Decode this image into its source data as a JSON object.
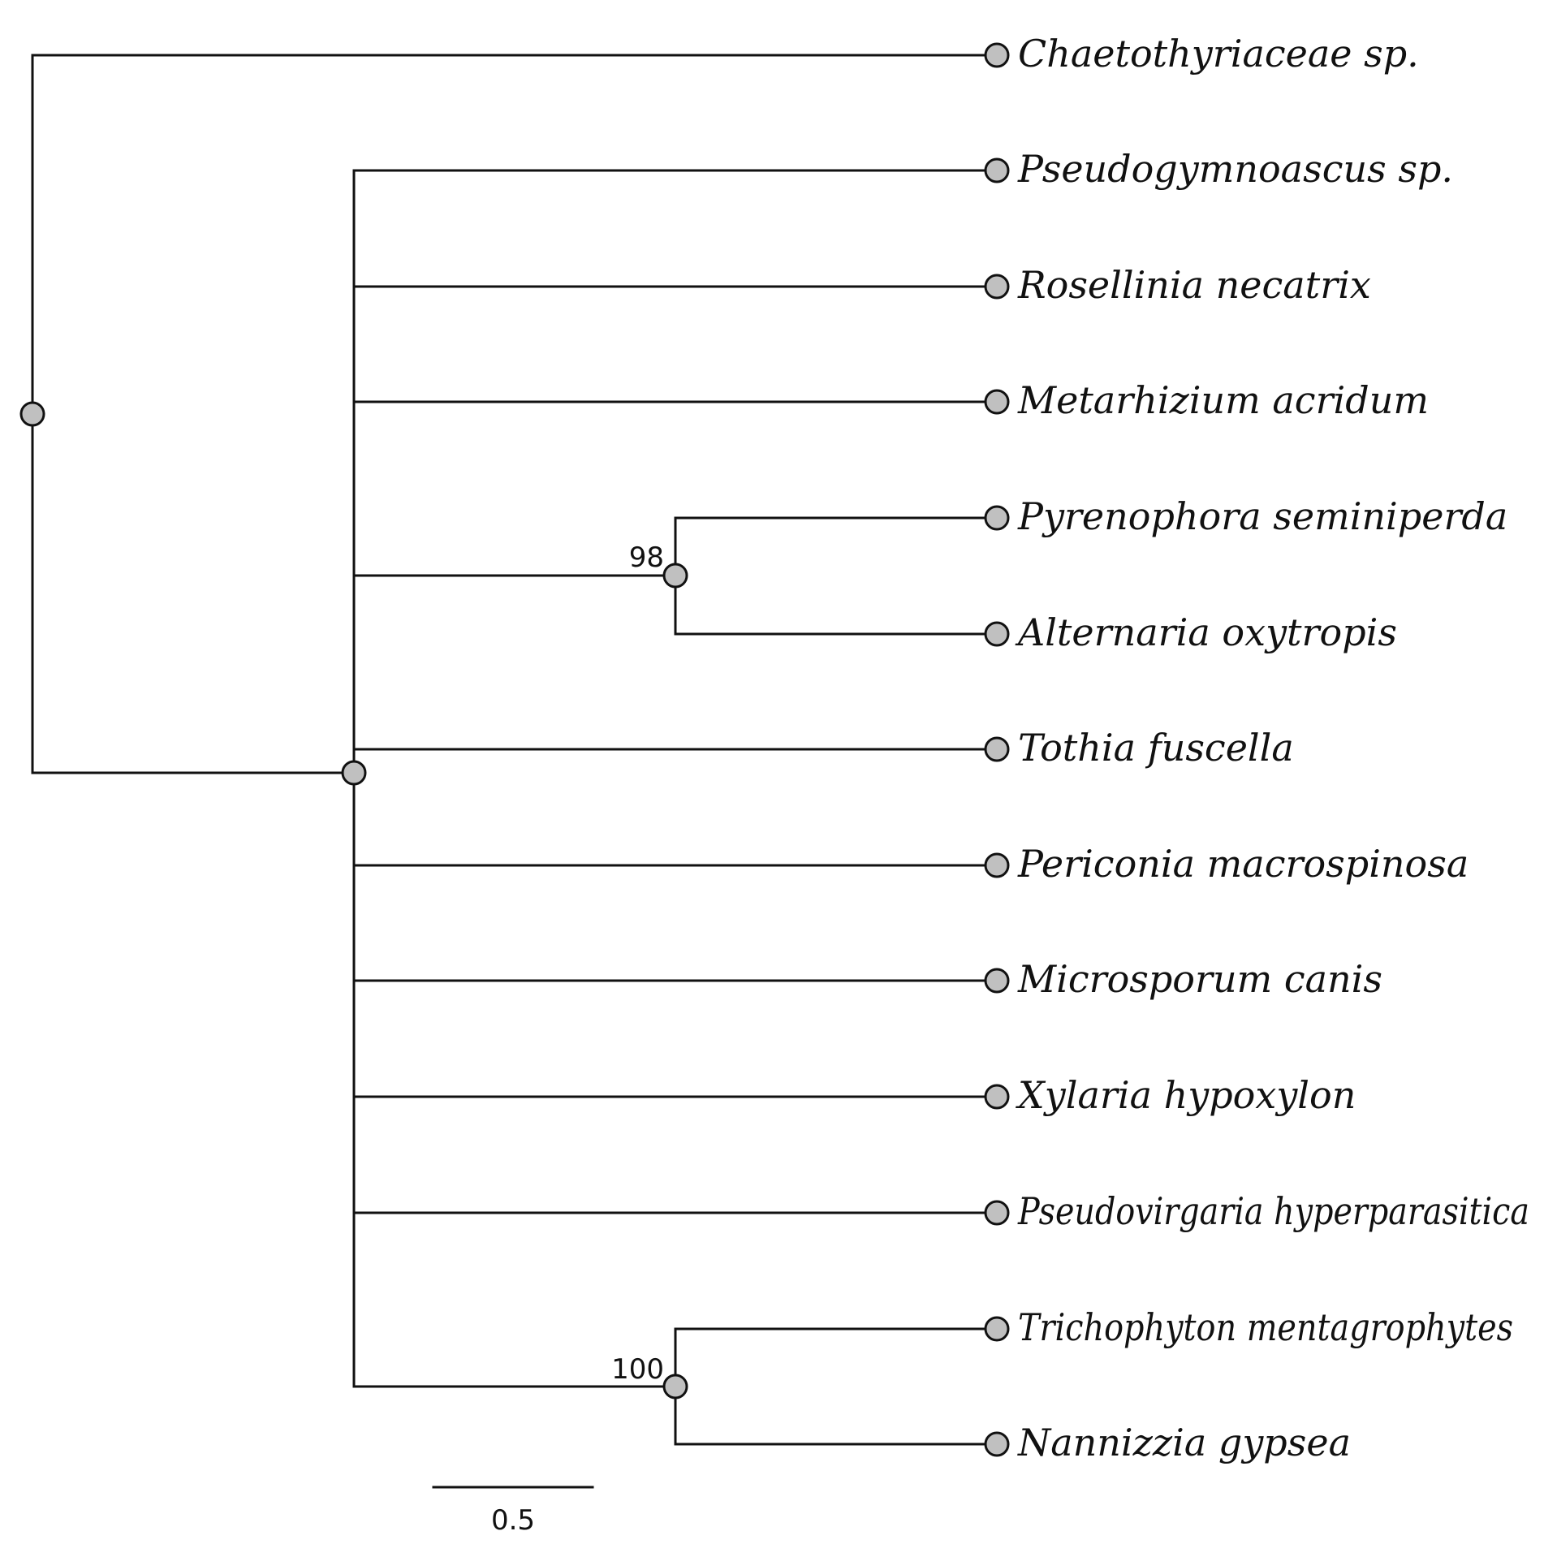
{
  "tree": {
    "taxa": [
      "Chaetothyriaceae sp.",
      "Pseudogymnoascus sp.",
      "Rosellinia necatrix",
      "Metarhizium acridum",
      "Pyrenophora seminiperda",
      "Alternaria oxytropis",
      "Tothia fuscella",
      "Periconia macrospinosa",
      "Microsporum canis",
      "Xylaria hypoxylon",
      "Pseudovirgaria hyperparasitica",
      "Trichophyton mentagrophytes",
      "Nannizzia gypsea"
    ],
    "support_values": {
      "pyrenophora_alternaria_clade": "98",
      "trichophyton_nannizzia_clade": "100"
    },
    "scale_bar": {
      "label": "0.5",
      "length": 0.5
    },
    "colors": {
      "line": "#111111",
      "node_fill": "#c0c0c0",
      "background": "#ffffff"
    }
  }
}
